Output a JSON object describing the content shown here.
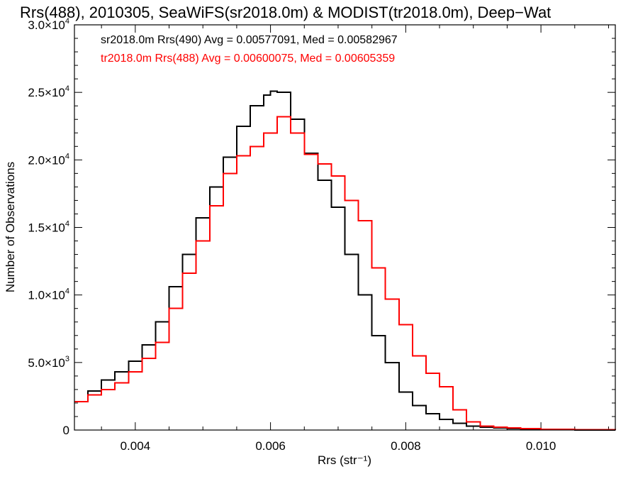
{
  "chart_data": {
    "type": "line",
    "title": "Rrs(488), 2010305, SeaWiFS(sr2018.0m) & MODIST(tr2018.0m), Deep−Wat",
    "xlabel": "Rrs (str⁻¹)",
    "ylabel": "Number of Observations",
    "xlim": [
      0.0031,
      0.0111
    ],
    "ylim": [
      0,
      30000
    ],
    "grid": false,
    "x_ticks": [
      {
        "value": 0.004,
        "label": "0.004"
      },
      {
        "value": 0.006,
        "label": "0.006"
      },
      {
        "value": 0.008,
        "label": "0.008"
      },
      {
        "value": 0.01,
        "label": "0.010"
      }
    ],
    "y_ticks": [
      {
        "value": 0,
        "mant": "0",
        "exp": ""
      },
      {
        "value": 5000,
        "mant": "5.0×10",
        "exp": "3"
      },
      {
        "value": 10000,
        "mant": "1.0×10",
        "exp": "4"
      },
      {
        "value": 15000,
        "mant": "1.5×10",
        "exp": "4"
      },
      {
        "value": 20000,
        "mant": "2.0×10",
        "exp": "4"
      },
      {
        "value": 25000,
        "mant": "2.5×10",
        "exp": "4"
      },
      {
        "value": 30000,
        "mant": "3.0×10",
        "exp": "4"
      }
    ],
    "legend_placement": "top-left",
    "series": [
      {
        "name": "sr2018.0m Rrs(490) Avg = 0.00577091, Med = 0.00582967",
        "color": "#000000",
        "points": [
          [
            0.0031,
            2100
          ],
          [
            0.0033,
            2900
          ],
          [
            0.0035,
            3700
          ],
          [
            0.0037,
            4300
          ],
          [
            0.0039,
            5100
          ],
          [
            0.0041,
            6300
          ],
          [
            0.0043,
            8000
          ],
          [
            0.0045,
            10600
          ],
          [
            0.0047,
            13000
          ],
          [
            0.0049,
            15700
          ],
          [
            0.0051,
            18000
          ],
          [
            0.0053,
            20200
          ],
          [
            0.0055,
            22500
          ],
          [
            0.0057,
            24000
          ],
          [
            0.0059,
            24800
          ],
          [
            0.006,
            25100
          ],
          [
            0.0061,
            25000
          ],
          [
            0.0063,
            23000
          ],
          [
            0.0065,
            20500
          ],
          [
            0.0067,
            18500
          ],
          [
            0.0069,
            16500
          ],
          [
            0.0071,
            13000
          ],
          [
            0.0073,
            10000
          ],
          [
            0.0075,
            7000
          ],
          [
            0.0077,
            5000
          ],
          [
            0.0079,
            2800
          ],
          [
            0.0081,
            1800
          ],
          [
            0.0083,
            1200
          ],
          [
            0.0085,
            800
          ],
          [
            0.0087,
            500
          ],
          [
            0.0089,
            300
          ],
          [
            0.0091,
            200
          ],
          [
            0.0093,
            150
          ],
          [
            0.0095,
            100
          ],
          [
            0.0097,
            60
          ],
          [
            0.01,
            30
          ],
          [
            0.0105,
            10
          ],
          [
            0.0111,
            0
          ]
        ]
      },
      {
        "name": "tr2018.0m Rrs(488) Avg = 0.00600075, Med = 0.00605359",
        "color": "#ff0000",
        "points": [
          [
            0.0031,
            2100
          ],
          [
            0.0033,
            2600
          ],
          [
            0.0035,
            3000
          ],
          [
            0.0037,
            3500
          ],
          [
            0.0039,
            4300
          ],
          [
            0.0041,
            5300
          ],
          [
            0.0043,
            6500
          ],
          [
            0.0045,
            9000
          ],
          [
            0.0047,
            11600
          ],
          [
            0.0049,
            14000
          ],
          [
            0.0051,
            16600
          ],
          [
            0.0053,
            19000
          ],
          [
            0.0055,
            20300
          ],
          [
            0.0057,
            21000
          ],
          [
            0.0059,
            22000
          ],
          [
            0.0061,
            23200
          ],
          [
            0.0063,
            22000
          ],
          [
            0.0065,
            20400
          ],
          [
            0.0067,
            19700
          ],
          [
            0.0069,
            18800
          ],
          [
            0.0071,
            17000
          ],
          [
            0.0073,
            15500
          ],
          [
            0.0075,
            12000
          ],
          [
            0.0077,
            9700
          ],
          [
            0.0079,
            7800
          ],
          [
            0.0081,
            5500
          ],
          [
            0.0083,
            4200
          ],
          [
            0.0085,
            3200
          ],
          [
            0.0087,
            1500
          ],
          [
            0.0089,
            600
          ],
          [
            0.0091,
            300
          ],
          [
            0.0093,
            200
          ],
          [
            0.0095,
            150
          ],
          [
            0.0097,
            100
          ],
          [
            0.01,
            50
          ],
          [
            0.0105,
            20
          ],
          [
            0.0111,
            0
          ]
        ]
      }
    ]
  }
}
